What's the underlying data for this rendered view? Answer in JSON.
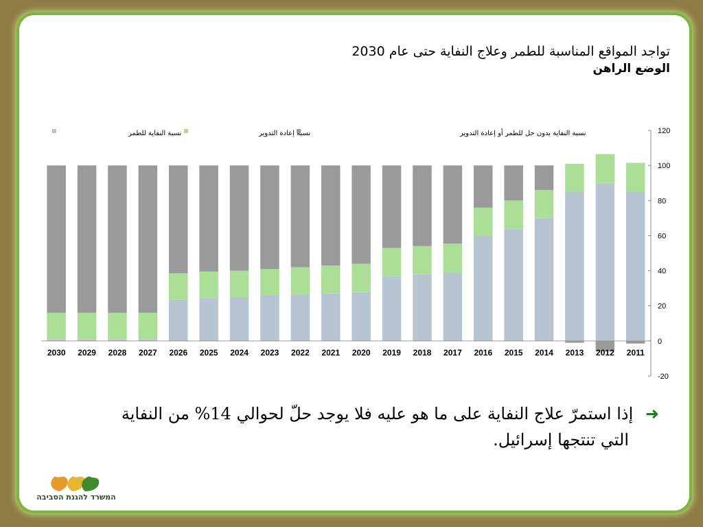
{
  "title": {
    "line1": "تواجد المواقع المناسبة للطمر وعلاج النفاية حتى عام 2030",
    "line2": "الوضع الراهن"
  },
  "bullet": {
    "icon": "arrow-left-icon",
    "line1": "إذا استمرّ علاج النفاية على ما هو عليه فلا يوجد حلّ لحوالي 14% من النفاية",
    "line2": "التي تنتجها إسرائيل."
  },
  "logo": {
    "text": "המשרד להגנת הסביבה",
    "icon": "leaves-logo-icon"
  },
  "colors": {
    "landfill": "#b7c5d2",
    "recycling": "#acdf96",
    "untreated": "#9a9a9a"
  },
  "chart_data": {
    "type": "bar",
    "stacked": true,
    "categories": [
      "2030",
      "2029",
      "2028",
      "2027",
      "2026",
      "2025",
      "2024",
      "2023",
      "2022",
      "2021",
      "2020",
      "2019",
      "2018",
      "2017",
      "2016",
      "2015",
      "2014",
      "2013",
      "2012",
      "2011"
    ],
    "series": [
      {
        "name": "نسبة النفاية للطمر",
        "color": "#b7c5d2",
        "values": [
          1,
          1,
          1,
          1,
          23.5,
          24.5,
          25,
          26,
          26.5,
          27,
          28,
          37,
          38,
          39,
          60,
          64,
          70,
          85,
          90,
          85
        ]
      },
      {
        "name": "نسبة إعادة التدوير",
        "color": "#acdf96",
        "values": [
          15,
          15,
          15,
          15,
          15,
          15,
          15,
          15,
          15.5,
          16,
          16,
          16,
          16,
          16.5,
          16,
          16,
          16,
          16,
          16.5,
          16.5
        ]
      },
      {
        "name": "نسبة النفاية بدون حل للطمر أو إعادة التدوير",
        "color": "#9a9a9a",
        "values": [
          84,
          84,
          84,
          84,
          61.5,
          60.5,
          60,
          59,
          58,
          57,
          56,
          47,
          46,
          44.5,
          24,
          20,
          14,
          -1,
          -6,
          -1.5
        ]
      }
    ],
    "yticks": [
      120,
      100,
      80,
      60,
      40,
      20,
      0,
      -20
    ],
    "ylim": [
      -20,
      120
    ],
    "axis_position": "right",
    "legend_position": "top",
    "grid": false
  }
}
